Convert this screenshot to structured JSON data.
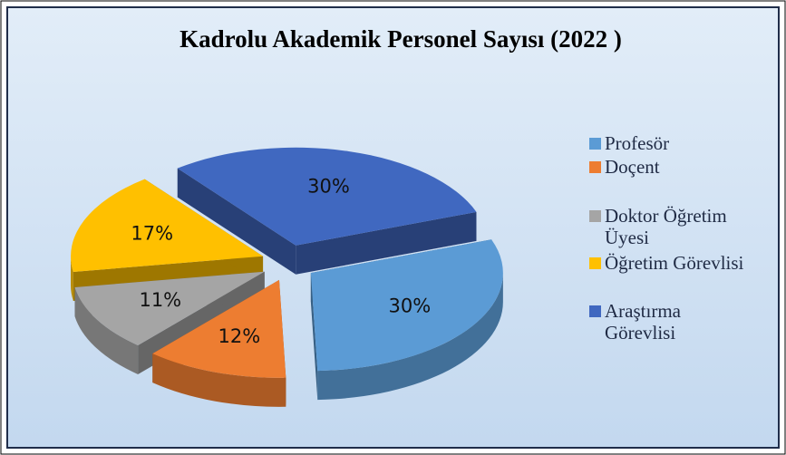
{
  "chart_data": {
    "type": "pie3d",
    "title": "Kadrolu Akademik Personel Sayısı (2022 )",
    "categories": [
      "Profesör",
      "Doçent",
      "Doktor Öğretim Üyesi",
      "Öğretim Görevlisi",
      "Araştırma Görevlisi"
    ],
    "values": [
      30,
      12,
      11,
      17,
      30
    ],
    "value_labels": [
      "30%",
      "12%",
      "11%",
      "17%",
      "30%"
    ],
    "colors": [
      "#5b9bd5",
      "#ed7d31",
      "#a5a5a5",
      "#ffc000",
      "#4068c0"
    ],
    "legend": "right"
  }
}
